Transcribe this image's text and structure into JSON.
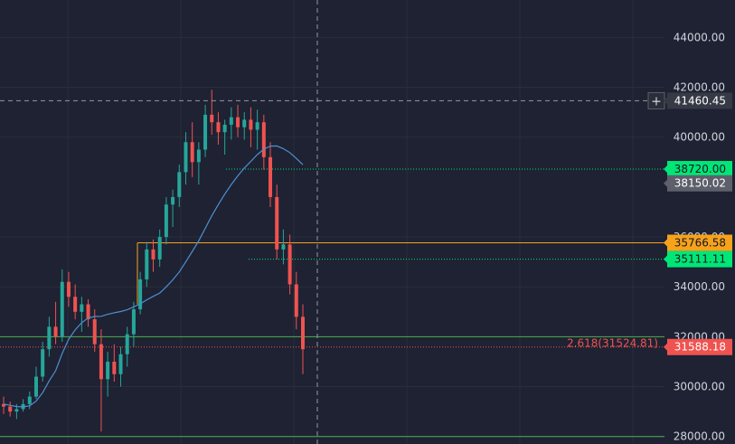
{
  "chart_data": {
    "type": "candlestick",
    "ylim": [
      27700,
      45500
    ],
    "y_ticks": [
      28000,
      30000,
      32000,
      34000,
      36000,
      40000,
      42000,
      44000
    ],
    "y_tick_labels": [
      "28000.00",
      "30000.00",
      "32000.00",
      "34000.00",
      "36000.00",
      "40000.00",
      "42000.00",
      "44000.00"
    ],
    "series": [
      {
        "name": "",
        "kind": "candles",
        "ohlc": [
          [
            29300,
            29600,
            28900,
            29200
          ],
          [
            29200,
            29400,
            28800,
            29000
          ],
          [
            29000,
            29300,
            28700,
            29100
          ],
          [
            29100,
            29500,
            29000,
            29300
          ],
          [
            29300,
            29800,
            29100,
            29600
          ],
          [
            29600,
            30800,
            29500,
            30400
          ],
          [
            30400,
            31800,
            30200,
            31500
          ],
          [
            31500,
            32800,
            31200,
            32400
          ],
          [
            32400,
            33400,
            31700,
            32000
          ],
          [
            32000,
            34700,
            31800,
            34200
          ],
          [
            34200,
            34600,
            33200,
            33600
          ],
          [
            33600,
            34100,
            32700,
            33000
          ],
          [
            33000,
            33600,
            32200,
            33300
          ],
          [
            33300,
            33500,
            32400,
            32700
          ],
          [
            32700,
            33100,
            31400,
            31700
          ],
          [
            31700,
            32300,
            28200,
            30300
          ],
          [
            30300,
            31400,
            29600,
            31000
          ],
          [
            31000,
            31700,
            30200,
            30500
          ],
          [
            30500,
            31600,
            30000,
            31300
          ],
          [
            31300,
            32400,
            30800,
            32100
          ],
          [
            32100,
            33400,
            31600,
            33100
          ],
          [
            33100,
            34600,
            32900,
            34300
          ],
          [
            34300,
            35800,
            34000,
            35500
          ],
          [
            35500,
            35900,
            34600,
            35100
          ],
          [
            35100,
            36300,
            34800,
            36000
          ],
          [
            36000,
            37600,
            35700,
            37300
          ],
          [
            37300,
            37900,
            36400,
            37600
          ],
          [
            37600,
            38900,
            37200,
            38600
          ],
          [
            38600,
            40200,
            38100,
            39800
          ],
          [
            39800,
            40600,
            38400,
            39000
          ],
          [
            39000,
            39800,
            38100,
            39500
          ],
          [
            39500,
            41300,
            39200,
            40900
          ],
          [
            40900,
            41900,
            40100,
            40600
          ],
          [
            40600,
            41000,
            39700,
            40200
          ],
          [
            40200,
            40700,
            39300,
            40500
          ],
          [
            40500,
            41200,
            39900,
            40800
          ],
          [
            40800,
            41300,
            40000,
            40400
          ],
          [
            40400,
            41000,
            39900,
            40700
          ],
          [
            40700,
            41200,
            39600,
            40300
          ],
          [
            40300,
            41100,
            39500,
            40600
          ],
          [
            40600,
            40900,
            38700,
            39200
          ],
          [
            39200,
            39800,
            37200,
            37600
          ],
          [
            37600,
            38100,
            35100,
            35500
          ],
          [
            35500,
            36300,
            34900,
            35700
          ],
          [
            35700,
            36100,
            33700,
            34100
          ],
          [
            34100,
            34600,
            32300,
            32800
          ],
          [
            32800,
            33300,
            30500,
            31500
          ]
        ]
      },
      {
        "name": "",
        "kind": "moving-average",
        "values": [
          29300,
          29250,
          29200,
          29190,
          29230,
          29420,
          29760,
          30230,
          30640,
          31330,
          31900,
          32280,
          32560,
          32750,
          32810,
          32820,
          32900,
          32960,
          33010,
          33080,
          33200,
          33320,
          33480,
          33620,
          33750,
          34000,
          34280,
          34600,
          35000,
          35420,
          35850,
          36350,
          36850,
          37300,
          37720,
          38100,
          38450,
          38760,
          39030,
          39300,
          39520,
          39640,
          39650,
          39540,
          39380,
          39150,
          38900
        ]
      }
    ],
    "horizontal_levels": [
      {
        "value": 38720.0,
        "label": "38720.00",
        "color": "#00e676",
        "style": "dotted"
      },
      {
        "value": 35766.58,
        "label": "35766.58",
        "color": "#f7a21b",
        "style": "solid"
      },
      {
        "value": 35111.11,
        "label": "35111.11",
        "color": "#00e676",
        "style": "dotted"
      },
      {
        "value": 32000.0,
        "label": "",
        "color": "#4caf50",
        "style": "solid"
      },
      {
        "value": 31588.18,
        "label": "31588.18",
        "color": "#ef5350",
        "style": "dotted"
      },
      {
        "value": 28000.0,
        "label": "",
        "color": "#4caf50",
        "style": "solid"
      }
    ],
    "annotation": {
      "text": "2.618(31524.81)",
      "value": 31524.81,
      "color": "#ef5350"
    },
    "crosshair": {
      "value": 41460.45,
      "label": "41460.45",
      "plus": "+"
    },
    "price_label": {
      "value": 38150.02,
      "label": "38150.02",
      "color": "#5d606b"
    },
    "colors": {
      "background": "#1e2233",
      "up": "#26a69a",
      "down": "#ef5350",
      "ma": "#4f8fcf",
      "grid": "#2a2e39",
      "axis_text": "#d1d4dc"
    }
  }
}
